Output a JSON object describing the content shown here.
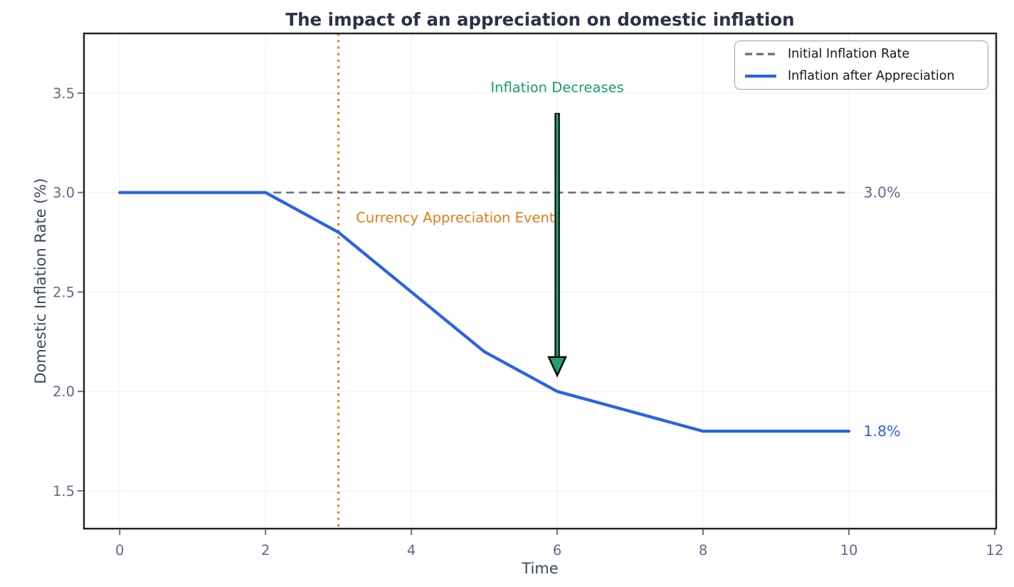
{
  "title": "The impact of an appreciation on domestic inflation",
  "colors": {
    "blue": "#2a63e4",
    "gray": "#5f6e85",
    "orange": "#df7d14",
    "green": "#18a06a",
    "arrow_fill": "#22a06e",
    "arrow_edge": "#000000",
    "grid": "#f0f5f4",
    "spine": "#1c1f24",
    "tick_mark": "#67748a",
    "tick_label": "#5d6b85",
    "axis_label": "#3b4859",
    "title": "#2b3245",
    "legend_text": "#15171a"
  },
  "chart_data": {
    "type": "line",
    "title": "The impact of an appreciation on domestic inflation",
    "xlabel": "Time",
    "ylabel": "Domestic Inflation Rate (%)",
    "xlim": [
      -0.49,
      12.02
    ],
    "ylim": [
      1.31,
      3.8
    ],
    "xticks": [
      0,
      2,
      4,
      6,
      8,
      10,
      12
    ],
    "yticks": [
      1.5,
      2.0,
      2.5,
      3.0,
      3.5
    ],
    "grid": true,
    "legend_position": "upper right",
    "series": [
      {
        "name": "Initial Inflation Rate",
        "style": "dashed",
        "color": "#5f6e85",
        "x": [
          0,
          10
        ],
        "y": [
          3.0,
          3.0
        ]
      },
      {
        "name": "Inflation after Appreciation",
        "style": "solid",
        "color": "#2a63e4",
        "x": [
          0,
          1,
          2,
          3,
          4,
          5,
          6,
          7,
          8,
          9,
          10
        ],
        "y": [
          3.0,
          3.0,
          3.0,
          2.8,
          2.5,
          2.2,
          2.0,
          1.9,
          1.8,
          1.8,
          1.8
        ]
      }
    ],
    "event_line": {
      "x": 3,
      "style": "dotted",
      "color": "#df7d14"
    },
    "arrow": {
      "x": 6,
      "y_from": 3.4,
      "y_to": 2.08,
      "fill": "#22a06e",
      "edge": "#000000"
    },
    "annotations": [
      {
        "text": "Inflation Decreases",
        "x": 6,
        "y": 3.53,
        "color": "#18a06a",
        "align": "center"
      },
      {
        "text": "Currency Appreciation Event",
        "x": 3.24,
        "y": 2.875,
        "color": "#df7d14",
        "align": "left"
      },
      {
        "text": "3.0%",
        "x": 10.2,
        "y": 3.0,
        "color": "#5f6e85",
        "align": "left"
      },
      {
        "text": "1.8%",
        "x": 10.2,
        "y": 1.8,
        "color": "#2a63e4",
        "align": "left"
      }
    ],
    "legend": {
      "entries": [
        {
          "label": "Initial Inflation Rate",
          "style": "dashed",
          "color": "#5f6e85"
        },
        {
          "label": "Inflation after Appreciation",
          "style": "solid",
          "color": "#2a63e4"
        }
      ]
    }
  }
}
